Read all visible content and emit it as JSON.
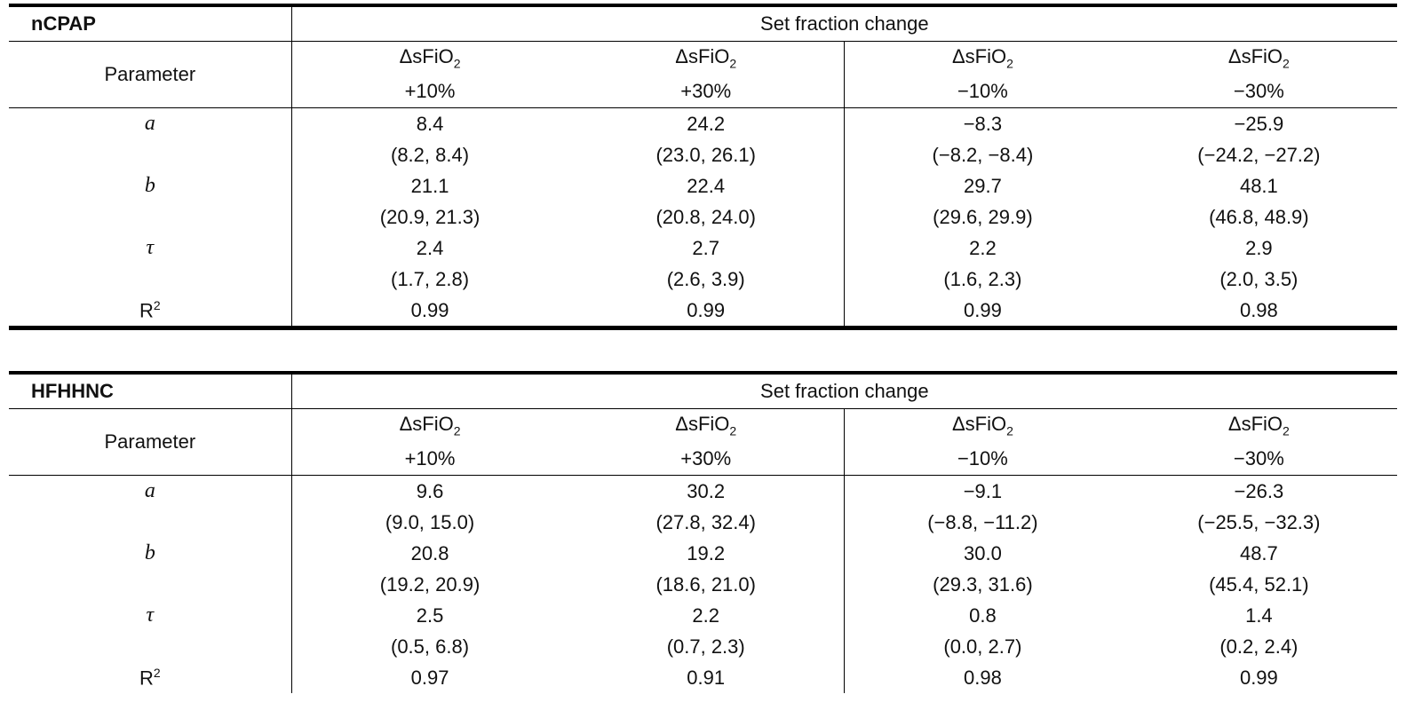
{
  "tables": [
    {
      "name": "nCPAP",
      "group_header": "Set fraction change",
      "parameter_label": "Parameter",
      "columns": [
        {
          "label": "ΔsFiO",
          "sub": "2",
          "change": "+10%"
        },
        {
          "label": "ΔsFiO",
          "sub": "2",
          "change": "+30%"
        },
        {
          "label": "ΔsFiO",
          "sub": "2",
          "change": "−10%"
        },
        {
          "label": "ΔsFiO",
          "sub": "2",
          "change": "−30%"
        }
      ],
      "rows": [
        {
          "param": "a",
          "italic": true,
          "sup": "",
          "values": [
            "8.4",
            "24.2",
            "−8.3",
            "−25.9"
          ],
          "ci": [
            "(8.2, 8.4)",
            "(23.0, 26.1)",
            "(−8.2, −8.4)",
            "(−24.2, −27.2)"
          ]
        },
        {
          "param": "b",
          "italic": true,
          "sup": "",
          "values": [
            "21.1",
            "22.4",
            "29.7",
            "48.1"
          ],
          "ci": [
            "(20.9, 21.3)",
            "(20.8, 24.0)",
            "(29.6, 29.9)",
            "(46.8, 48.9)"
          ]
        },
        {
          "param": "τ",
          "italic": true,
          "sup": "",
          "values": [
            "2.4",
            "2.7",
            "2.2",
            "2.9"
          ],
          "ci": [
            "(1.7, 2.8)",
            "(2.6, 3.9)",
            "(1.6, 2.3)",
            "(2.0, 3.5)"
          ]
        },
        {
          "param": "R",
          "italic": false,
          "sup": "2",
          "values": [
            "0.99",
            "0.99",
            "0.99",
            "0.98"
          ],
          "ci": null
        }
      ]
    },
    {
      "name": "HFHHNC",
      "group_header": "Set fraction change",
      "parameter_label": "Parameter",
      "columns": [
        {
          "label": "ΔsFiO",
          "sub": "2",
          "change": "+10%"
        },
        {
          "label": "ΔsFiO",
          "sub": "2",
          "change": "+30%"
        },
        {
          "label": "ΔsFiO",
          "sub": "2",
          "change": "−10%"
        },
        {
          "label": "ΔsFiO",
          "sub": "2",
          "change": "−30%"
        }
      ],
      "rows": [
        {
          "param": "a",
          "italic": true,
          "sup": "",
          "values": [
            "9.6",
            "30.2",
            "−9.1",
            "−26.3"
          ],
          "ci": [
            "(9.0, 15.0)",
            "(27.8, 32.4)",
            "(−8.8, −11.2)",
            "(−25.5, −32.3)"
          ]
        },
        {
          "param": "b",
          "italic": true,
          "sup": "",
          "values": [
            "20.8",
            "19.2",
            "30.0",
            "48.7"
          ],
          "ci": [
            "(19.2, 20.9)",
            "(18.6, 21.0)",
            "(29.3, 31.6)",
            "(45.4, 52.1)"
          ]
        },
        {
          "param": "τ",
          "italic": true,
          "sup": "",
          "values": [
            "2.5",
            "2.2",
            "0.8",
            "1.4"
          ],
          "ci": [
            "(0.5, 6.8)",
            "(0.7, 2.3)",
            "(0.0, 2.7)",
            "(0.2, 2.4)"
          ]
        },
        {
          "param": "R",
          "italic": false,
          "sup": "2",
          "values": [
            "0.97",
            "0.91",
            "0.98",
            "0.99"
          ],
          "ci": null
        }
      ]
    }
  ]
}
